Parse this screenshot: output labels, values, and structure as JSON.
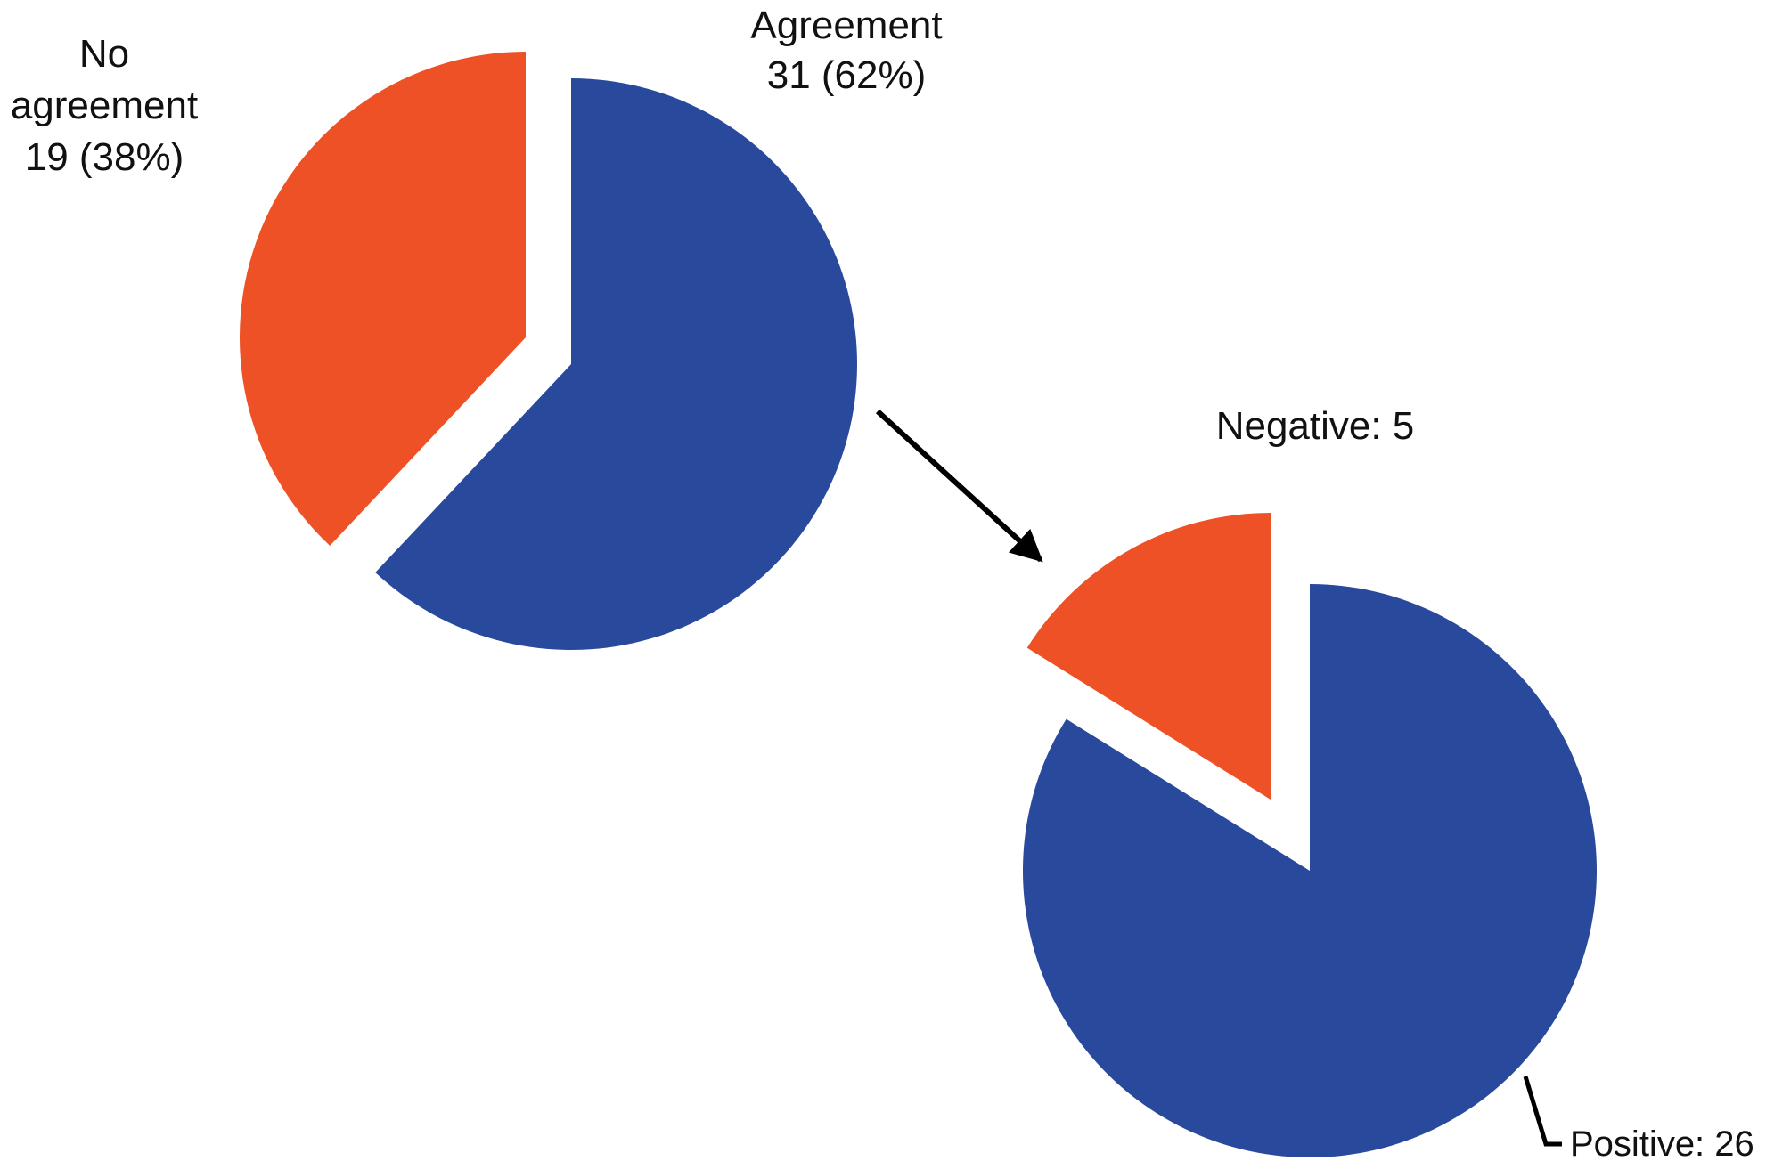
{
  "chart_data": [
    {
      "type": "pie",
      "categories": [
        "Agreement",
        "No agreement"
      ],
      "values": [
        31,
        19
      ],
      "value_labels": [
        "31 (62%)",
        "19 (38%)"
      ],
      "colors": [
        "#29499c",
        "#ee5125"
      ]
    },
    {
      "type": "pie",
      "values": [
        26,
        5
      ],
      "value_labels": [
        "Positive: 26",
        "Negative: 5"
      ],
      "colors": [
        "#29499c",
        "#ee5125"
      ]
    }
  ]
}
